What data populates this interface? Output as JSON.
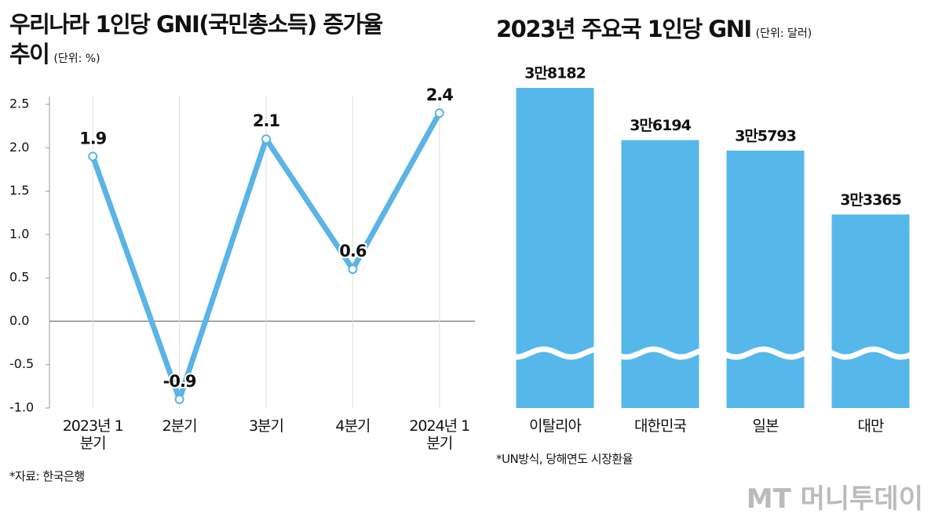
{
  "chart_data": [
    {
      "type": "line",
      "title": "우리나라 1인당 GNI(국민총소득) 증가율 추이",
      "unit": "(단위: %)",
      "categories": [
        "2023년 1분기",
        "2분기",
        "3분기",
        "4분기",
        "2024년 1분기"
      ],
      "values": [
        1.9,
        -0.9,
        2.1,
        0.6,
        2.4
      ],
      "color": "#5ab4e5",
      "ylim": [
        -1,
        2.5
      ],
      "yticks": [
        {
          "value": -1,
          "label": "-1.0"
        },
        -0.5,
        {
          "value": 0,
          "label": "0.0"
        },
        0.5,
        {
          "value": 1,
          "label": "1.0"
        },
        1.5,
        {
          "value": 2,
          "label": "2.0"
        },
        2.5
      ],
      "grid": true,
      "note": "*자료: 한국은행"
    },
    {
      "type": "bar",
      "title": "2023년 주요국 1인당 GNI",
      "unit": "(단위: 달러)",
      "categories": [
        "이탈리아",
        "대한민국",
        "일본",
        "대만"
      ],
      "values": [
        38182,
        36194,
        35793,
        33365
      ],
      "value_labels": [
        "3만8182",
        "3만6194",
        "3만5793",
        "3만3365"
      ],
      "color": "#56b8ea",
      "ylim": [
        26000,
        39000
      ],
      "axis_break": true,
      "note": "*UN방식, 당해연도 시장환율"
    }
  ],
  "watermark": "MT 머니투데이"
}
